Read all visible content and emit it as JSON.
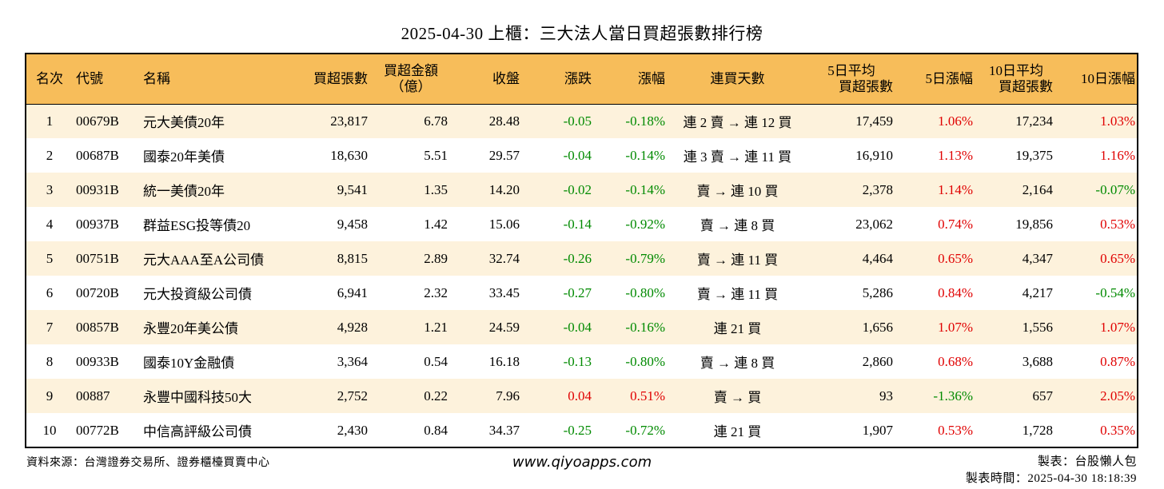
{
  "title": "2025-04-30 上櫃：三大法人當日買超張數排行榜",
  "headers": {
    "rank": "名次",
    "code": "代號",
    "name": "名稱",
    "buy_lots": "買超張數",
    "amount_line1": "買超金額",
    "amount_line2": "（億）",
    "close": "收盤",
    "change": "漲跌",
    "pct": "漲幅",
    "streak": "連買天數",
    "avg5_line1": "5日平均",
    "avg5_line2": "買超張數",
    "pct5": "5日漲幅",
    "avg10_line1": "10日平均",
    "avg10_line2": "買超張數",
    "pct10": "10日漲幅"
  },
  "rows": [
    {
      "rank": "1",
      "code": "00679B",
      "name": "元大美債20年",
      "buy_lots": "23,817",
      "amount": "6.78",
      "close": "28.48",
      "change": "-0.05",
      "pct": "-0.18%",
      "streak": "連 2 賣 → 連 12 買",
      "avg5": "17,459",
      "pct5": "1.06%",
      "avg10": "17,234",
      "pct10": "1.03%"
    },
    {
      "rank": "2",
      "code": "00687B",
      "name": "國泰20年美債",
      "buy_lots": "18,630",
      "amount": "5.51",
      "close": "29.57",
      "change": "-0.04",
      "pct": "-0.14%",
      "streak": "連 3 賣 → 連 11 買",
      "avg5": "16,910",
      "pct5": "1.13%",
      "avg10": "19,375",
      "pct10": "1.16%"
    },
    {
      "rank": "3",
      "code": "00931B",
      "name": "統一美債20年",
      "buy_lots": "9,541",
      "amount": "1.35",
      "close": "14.20",
      "change": "-0.02",
      "pct": "-0.14%",
      "streak": "賣 → 連 10 買",
      "avg5": "2,378",
      "pct5": "1.14%",
      "avg10": "2,164",
      "pct10": "-0.07%"
    },
    {
      "rank": "4",
      "code": "00937B",
      "name": "群益ESG投等債20",
      "buy_lots": "9,458",
      "amount": "1.42",
      "close": "15.06",
      "change": "-0.14",
      "pct": "-0.92%",
      "streak": "賣 → 連 8 買",
      "avg5": "23,062",
      "pct5": "0.74%",
      "avg10": "19,856",
      "pct10": "0.53%"
    },
    {
      "rank": "5",
      "code": "00751B",
      "name": "元大AAA至A公司債",
      "buy_lots": "8,815",
      "amount": "2.89",
      "close": "32.74",
      "change": "-0.26",
      "pct": "-0.79%",
      "streak": "賣 → 連 11 買",
      "avg5": "4,464",
      "pct5": "0.65%",
      "avg10": "4,347",
      "pct10": "0.65%"
    },
    {
      "rank": "6",
      "code": "00720B",
      "name": "元大投資級公司債",
      "buy_lots": "6,941",
      "amount": "2.32",
      "close": "33.45",
      "change": "-0.27",
      "pct": "-0.80%",
      "streak": "賣 → 連 11 買",
      "avg5": "5,286",
      "pct5": "0.84%",
      "avg10": "4,217",
      "pct10": "-0.54%"
    },
    {
      "rank": "7",
      "code": "00857B",
      "name": "永豐20年美公債",
      "buy_lots": "4,928",
      "amount": "1.21",
      "close": "24.59",
      "change": "-0.04",
      "pct": "-0.16%",
      "streak": "連 21 買",
      "avg5": "1,656",
      "pct5": "1.07%",
      "avg10": "1,556",
      "pct10": "1.07%"
    },
    {
      "rank": "8",
      "code": "00933B",
      "name": "國泰10Y金融債",
      "buy_lots": "3,364",
      "amount": "0.54",
      "close": "16.18",
      "change": "-0.13",
      "pct": "-0.80%",
      "streak": "賣 → 連 8 買",
      "avg5": "2,860",
      "pct5": "0.68%",
      "avg10": "3,688",
      "pct10": "0.87%"
    },
    {
      "rank": "9",
      "code": "00887",
      "name": "永豐中國科技50大",
      "buy_lots": "2,752",
      "amount": "0.22",
      "close": "7.96",
      "change": "0.04",
      "pct": "0.51%",
      "streak": "賣 → 買",
      "avg5": "93",
      "pct5": "-1.36%",
      "avg10": "657",
      "pct10": "2.05%"
    },
    {
      "rank": "10",
      "code": "00772B",
      "name": "中信高評級公司債",
      "buy_lots": "2,430",
      "amount": "0.84",
      "close": "34.37",
      "change": "-0.25",
      "pct": "-0.72%",
      "streak": "連 21 買",
      "avg5": "1,907",
      "pct5": "0.53%",
      "avg10": "1,728",
      "pct10": "0.35%"
    }
  ],
  "footer": {
    "source": "資料來源：台灣證券交易所、證券櫃檯買賣中心",
    "website": "www.qiyoapps.com",
    "maker": "製表：台股懶人包",
    "made_time": "製表時間：2025-04-30 18:18:39"
  },
  "colors": {
    "header_bg": "#f7bd5a",
    "stripe_bg": "#fdf2dc",
    "up": "#e00000",
    "down": "#008a00"
  }
}
